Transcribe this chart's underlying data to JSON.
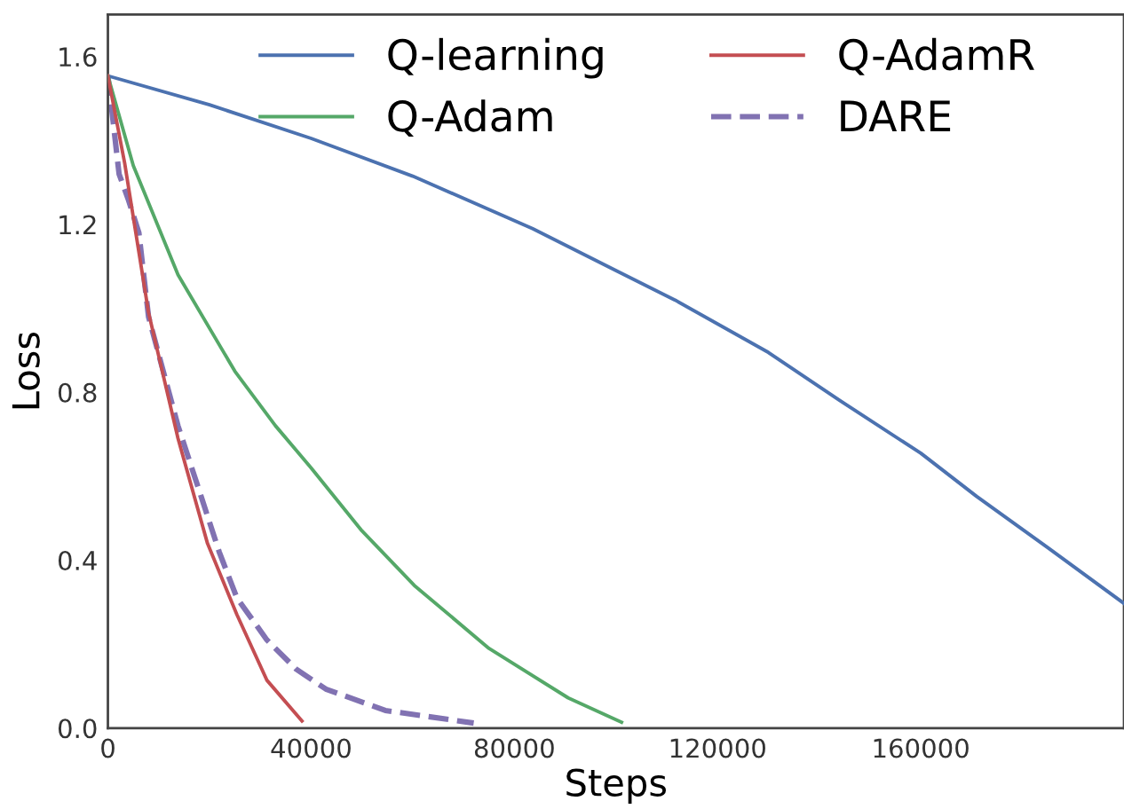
{
  "chart_data": {
    "type": "line",
    "xlabel": "Steps",
    "ylabel": "Loss",
    "xlim": [
      0,
      200000
    ],
    "ylim": [
      0,
      1.7
    ],
    "xticks": [
      0,
      40000,
      80000,
      120000,
      160000
    ],
    "yticks": [
      {
        "value": 0,
        "label": "0.0"
      },
      0.4,
      0.8,
      1.2,
      1.6
    ],
    "grid": false,
    "legend": "top right",
    "series": [
      {
        "name": "Q-learning",
        "color": "#4c72b0",
        "line_style": "solid",
        "x": [
          0,
          20000,
          40000,
          60000,
          83600,
          100000,
          111600,
          130000,
          144100,
          160000,
          171000,
          185000,
          200000
        ],
        "values": [
          1.554,
          1.485,
          1.405,
          1.315,
          1.19,
          1.09,
          1.02,
          0.895,
          0.78,
          0.655,
          0.552,
          0.43,
          0.297
        ]
      },
      {
        "name": "Q-Adam",
        "color": "#55a868",
        "line_style": "solid",
        "x": [
          0,
          5000,
          13800,
          25000,
          33000,
          40000,
          50000,
          60300,
          75000,
          90600,
          101100
        ],
        "values": [
          1.554,
          1.34,
          1.08,
          0.85,
          0.72,
          0.62,
          0.47,
          0.34,
          0.19,
          0.072,
          0.014
        ]
      },
      {
        "name": "Q-AdamR",
        "color": "#c44e52",
        "line_style": "solid",
        "x": [
          0,
          3300,
          8000,
          13800,
          19600,
          25400,
          31300,
          38200
        ],
        "values": [
          1.554,
          1.346,
          0.99,
          0.69,
          0.44,
          0.27,
          0.114,
          0.017
        ]
      },
      {
        "name": "DARE",
        "color": "#8172b2",
        "line_style": "dashed",
        "x": [
          0,
          2200,
          4000,
          6100,
          8000,
          13800,
          18400,
          21900,
          25400,
          31300,
          37100,
          42900,
          54600,
          72000
        ],
        "values": [
          1.554,
          1.32,
          1.26,
          1.18,
          0.98,
          0.72,
          0.55,
          0.42,
          0.31,
          0.21,
          0.14,
          0.093,
          0.042,
          0.012
        ]
      }
    ]
  }
}
